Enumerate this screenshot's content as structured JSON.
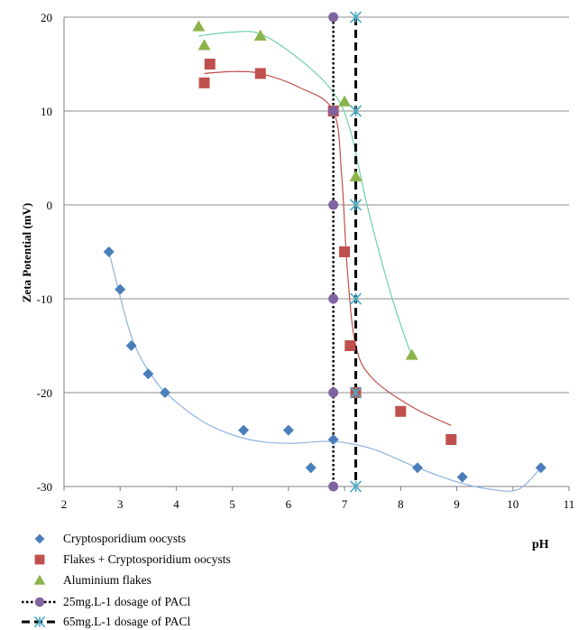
{
  "chart_data": {
    "type": "scatter",
    "xlabel": "pH",
    "ylabel": "Zeta Potential (mV)",
    "xlim": [
      2,
      11
    ],
    "ylim": [
      -30,
      20
    ],
    "xticks": [
      "2",
      "3",
      "4",
      "5",
      "6",
      "7",
      "8",
      "9",
      "10",
      "11"
    ],
    "yticks": [
      "-30",
      "-20",
      "-10",
      "0",
      "10",
      "20"
    ],
    "grid": "horizontal",
    "legend_position": "bottom-left",
    "series": [
      {
        "name": "Cryptosporidium oocysts",
        "marker": "diamond",
        "color": "#4a7ebb",
        "line_color": "#8db3e2",
        "points": [
          [
            2.8,
            -5
          ],
          [
            3.0,
            -9
          ],
          [
            3.2,
            -15
          ],
          [
            3.5,
            -18
          ],
          [
            3.8,
            -20
          ],
          [
            5.2,
            -24
          ],
          [
            6.0,
            -24
          ],
          [
            6.4,
            -28
          ],
          [
            6.8,
            -25
          ],
          [
            8.3,
            -28
          ],
          [
            9.1,
            -29
          ],
          [
            10.5,
            -28
          ]
        ],
        "trend": [
          [
            2.8,
            -5
          ],
          [
            3.2,
            -14
          ],
          [
            3.6,
            -18.5
          ],
          [
            4.0,
            -21
          ],
          [
            4.6,
            -23.5
          ],
          [
            5.3,
            -25
          ],
          [
            6.0,
            -25.4
          ],
          [
            6.8,
            -25.2
          ],
          [
            7.5,
            -26
          ],
          [
            8.3,
            -28
          ],
          [
            9.0,
            -29.5
          ],
          [
            9.6,
            -30.3
          ],
          [
            10.1,
            -30.3
          ],
          [
            10.5,
            -28
          ]
        ]
      },
      {
        "name": "Flakes + Cryptosporidium oocysts",
        "marker": "square",
        "color": "#c0504d",
        "line_color": "#c0504d",
        "points": [
          [
            4.5,
            13
          ],
          [
            4.6,
            15
          ],
          [
            5.5,
            14
          ],
          [
            6.8,
            10
          ],
          [
            7.0,
            -5
          ],
          [
            7.1,
            -15
          ],
          [
            7.2,
            -20
          ],
          [
            8.0,
            -22
          ],
          [
            8.9,
            -25
          ]
        ],
        "trend": [
          [
            4.5,
            14
          ],
          [
            5.0,
            14.2
          ],
          [
            5.5,
            14
          ],
          [
            6.2,
            12.5
          ],
          [
            6.8,
            10
          ],
          [
            6.95,
            3
          ],
          [
            7.05,
            -7
          ],
          [
            7.2,
            -15
          ],
          [
            7.5,
            -18.5
          ],
          [
            8.2,
            -21.5
          ],
          [
            8.9,
            -23.5
          ]
        ]
      },
      {
        "name": "Aluminium flakes",
        "marker": "triangle",
        "color": "#8cb34a",
        "line_color": "#6fd0a8",
        "points": [
          [
            4.4,
            19
          ],
          [
            4.5,
            17
          ],
          [
            5.5,
            18
          ],
          [
            7.0,
            11
          ],
          [
            7.2,
            3
          ],
          [
            8.2,
            -16
          ]
        ],
        "trend": [
          [
            4.4,
            18
          ],
          [
            5.0,
            18.4
          ],
          [
            5.5,
            18.2
          ],
          [
            6.2,
            15.5
          ],
          [
            6.8,
            12
          ],
          [
            7.1,
            8
          ],
          [
            7.4,
            0
          ],
          [
            7.8,
            -9
          ],
          [
            8.1,
            -14.5
          ],
          [
            8.2,
            -16
          ]
        ]
      },
      {
        "name": "25mg.L-1 dosage of PACl",
        "marker": "circle",
        "color": "#8064a2",
        "line_style": "dotted",
        "points": [
          [
            6.8,
            20
          ],
          [
            6.8,
            10
          ],
          [
            6.8,
            0
          ],
          [
            6.8,
            -10
          ],
          [
            6.8,
            -20
          ],
          [
            6.8,
            -30
          ]
        ]
      },
      {
        "name": "65mg.L-1 dosage of PACl",
        "marker": "star",
        "color": "#4bacc6",
        "line_style": "dashed",
        "points": [
          [
            7.2,
            20
          ],
          [
            7.2,
            10
          ],
          [
            7.2,
            0
          ],
          [
            7.2,
            -10
          ],
          [
            7.2,
            -20
          ],
          [
            7.2,
            -30
          ]
        ]
      }
    ]
  }
}
